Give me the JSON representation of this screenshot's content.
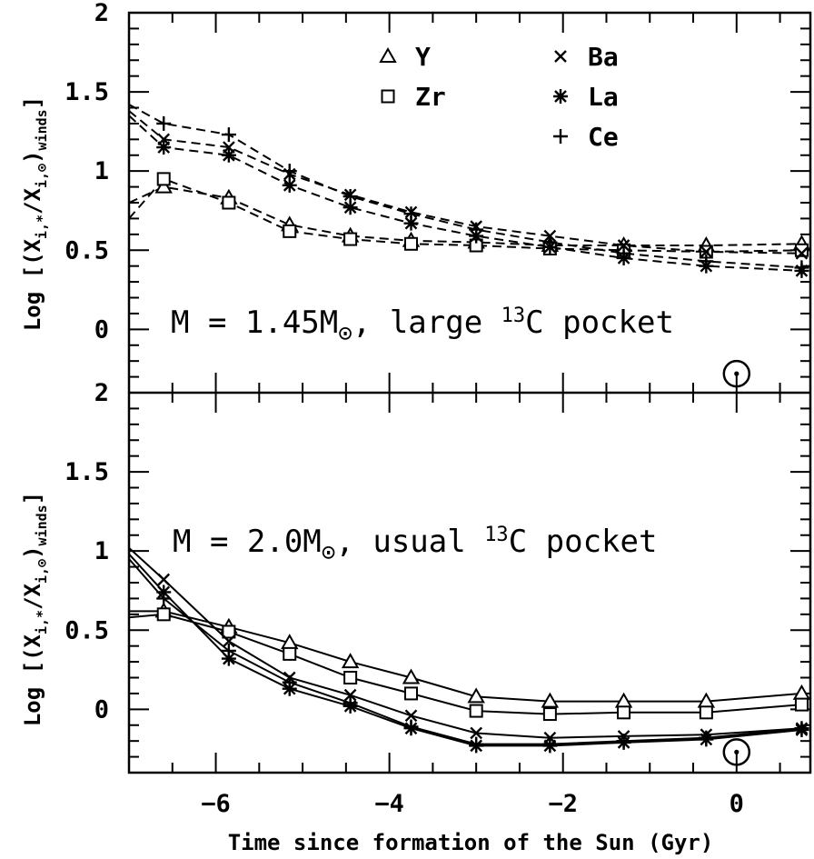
{
  "chart_data": [
    {
      "type": "line",
      "panel": "top",
      "x_range": [
        -7,
        0.85
      ],
      "y_range": [
        -0.4,
        2
      ],
      "xticks": [
        -6,
        -4,
        -2,
        0
      ],
      "yticks": [
        0,
        0.5,
        1,
        1.5,
        2
      ],
      "ytick_labels": [
        "0",
        "0.5",
        "1",
        "1.5",
        "2"
      ],
      "ylabel": "Log [(X_i,*/X_i,⊙)_winds]",
      "xlabel": "",
      "annotation": "M = 1.45M⊙, large ¹³C pocket",
      "sun_marker": {
        "x": 0,
        "y": -0.28
      },
      "line_style": "dashed",
      "x": [
        -6.6,
        -5.85,
        -5.15,
        -4.45,
        -3.75,
        -3.0,
        -2.15,
        -1.3,
        -0.35,
        0.75
      ],
      "series": [
        {
          "name": "Y",
          "marker": "triangle",
          "start": [
            -7,
            0.8
          ],
          "values": [
            0.9,
            0.83,
            0.66,
            0.59,
            0.56,
            0.55,
            0.53,
            0.53,
            0.53,
            0.54
          ]
        },
        {
          "name": "Zr",
          "marker": "square",
          "start": [
            -7,
            0.7
          ],
          "values": [
            0.95,
            0.8,
            0.62,
            0.57,
            0.54,
            0.53,
            0.51,
            0.5,
            0.49,
            0.5
          ]
        },
        {
          "name": "Ba",
          "marker": "cross",
          "start": [
            -7,
            1.38
          ],
          "values": [
            1.2,
            1.15,
            0.98,
            0.85,
            0.74,
            0.65,
            0.59,
            0.53,
            0.49,
            0.48
          ]
        },
        {
          "name": "La",
          "marker": "asterisk",
          "start": [
            -7,
            1.35
          ],
          "values": [
            1.15,
            1.1,
            0.91,
            0.77,
            0.67,
            0.59,
            0.52,
            0.45,
            0.4,
            0.37
          ]
        },
        {
          "name": "Ce",
          "marker": "plus",
          "start": [
            -7,
            1.42
          ],
          "values": [
            1.3,
            1.23,
            1.0,
            0.84,
            0.73,
            0.63,
            0.55,
            0.48,
            0.43,
            0.39
          ]
        }
      ]
    },
    {
      "type": "line",
      "panel": "bottom",
      "x_range": [
        -7,
        0.85
      ],
      "y_range": [
        -0.4,
        2
      ],
      "xticks": [
        -6,
        -4,
        -2,
        0
      ],
      "xtick_labels": [
        "−6",
        "−4",
        "−2",
        "0"
      ],
      "yticks": [
        0,
        0.5,
        1,
        1.5,
        2
      ],
      "ytick_labels": [
        "0",
        "0.5",
        "1",
        "1.5",
        "2"
      ],
      "ylabel": "Log [(X_i,*/X_i,⊙)_winds]",
      "xlabel": "Time since formation of the Sun (Gyr)",
      "annotation": "M = 2.0M⊙, usual ¹³C pocket",
      "sun_marker": {
        "x": 0,
        "y": -0.27
      },
      "line_style": "solid",
      "x": [
        -6.6,
        -5.85,
        -5.15,
        -4.45,
        -3.75,
        -3.0,
        -2.15,
        -1.3,
        -0.35,
        0.75
      ],
      "series": [
        {
          "name": "Y",
          "marker": "triangle",
          "start": [
            -7,
            0.62
          ],
          "values": [
            0.62,
            0.52,
            0.42,
            0.3,
            0.2,
            0.08,
            0.05,
            0.05,
            0.05,
            0.1
          ]
        },
        {
          "name": "Zr",
          "marker": "square",
          "start": [
            -7,
            0.58
          ],
          "values": [
            0.6,
            0.49,
            0.35,
            0.2,
            0.1,
            -0.01,
            -0.03,
            -0.02,
            -0.02,
            0.03
          ]
        },
        {
          "name": "Ba",
          "marker": "cross",
          "start": [
            -7,
            1.02
          ],
          "values": [
            0.82,
            0.43,
            0.2,
            0.09,
            -0.04,
            -0.15,
            -0.18,
            -0.17,
            -0.16,
            -0.12
          ]
        },
        {
          "name": "La",
          "marker": "asterisk",
          "start": [
            -7,
            0.98
          ],
          "values": [
            0.74,
            0.32,
            0.13,
            0.02,
            -0.12,
            -0.23,
            -0.23,
            -0.21,
            -0.19,
            -0.13
          ]
        },
        {
          "name": "Ce",
          "marker": "plus",
          "start": [
            -7,
            0.95
          ],
          "values": [
            0.7,
            0.37,
            0.17,
            0.04,
            -0.11,
            -0.22,
            -0.22,
            -0.2,
            -0.18,
            -0.12
          ]
        }
      ]
    }
  ],
  "legend": [
    {
      "name": "Y",
      "marker": "triangle"
    },
    {
      "name": "Zr",
      "marker": "square"
    },
    {
      "name": "Ba",
      "marker": "cross"
    },
    {
      "name": "La",
      "marker": "asterisk"
    },
    {
      "name": "Ce",
      "marker": "plus"
    }
  ],
  "text": {
    "top_label": {
      "main": "M = 1.45M",
      "tail1": ", large ",
      "sup": "13",
      "tail2": "C pocket"
    },
    "bottom_label": {
      "main": "M = 2.0M",
      "tail1": ", usual ",
      "sup": "13",
      "tail2": "C pocket"
    },
    "ylabel_top": {
      "main": "Log [(X",
      "i_sub": "i,*",
      "mid": "/X",
      "sun_sub": "i,⊙",
      "close": ")",
      "winds": "winds",
      "end": "]"
    },
    "ylabel_bottom": {
      "main": "Log [(X",
      "i_sub": "i,*",
      "mid": "/X",
      "sun_sub": "i,⊙",
      "close": ")",
      "winds": "winds",
      "end": "]"
    },
    "xlabel": "Time since formation of the Sun (Gyr)"
  }
}
